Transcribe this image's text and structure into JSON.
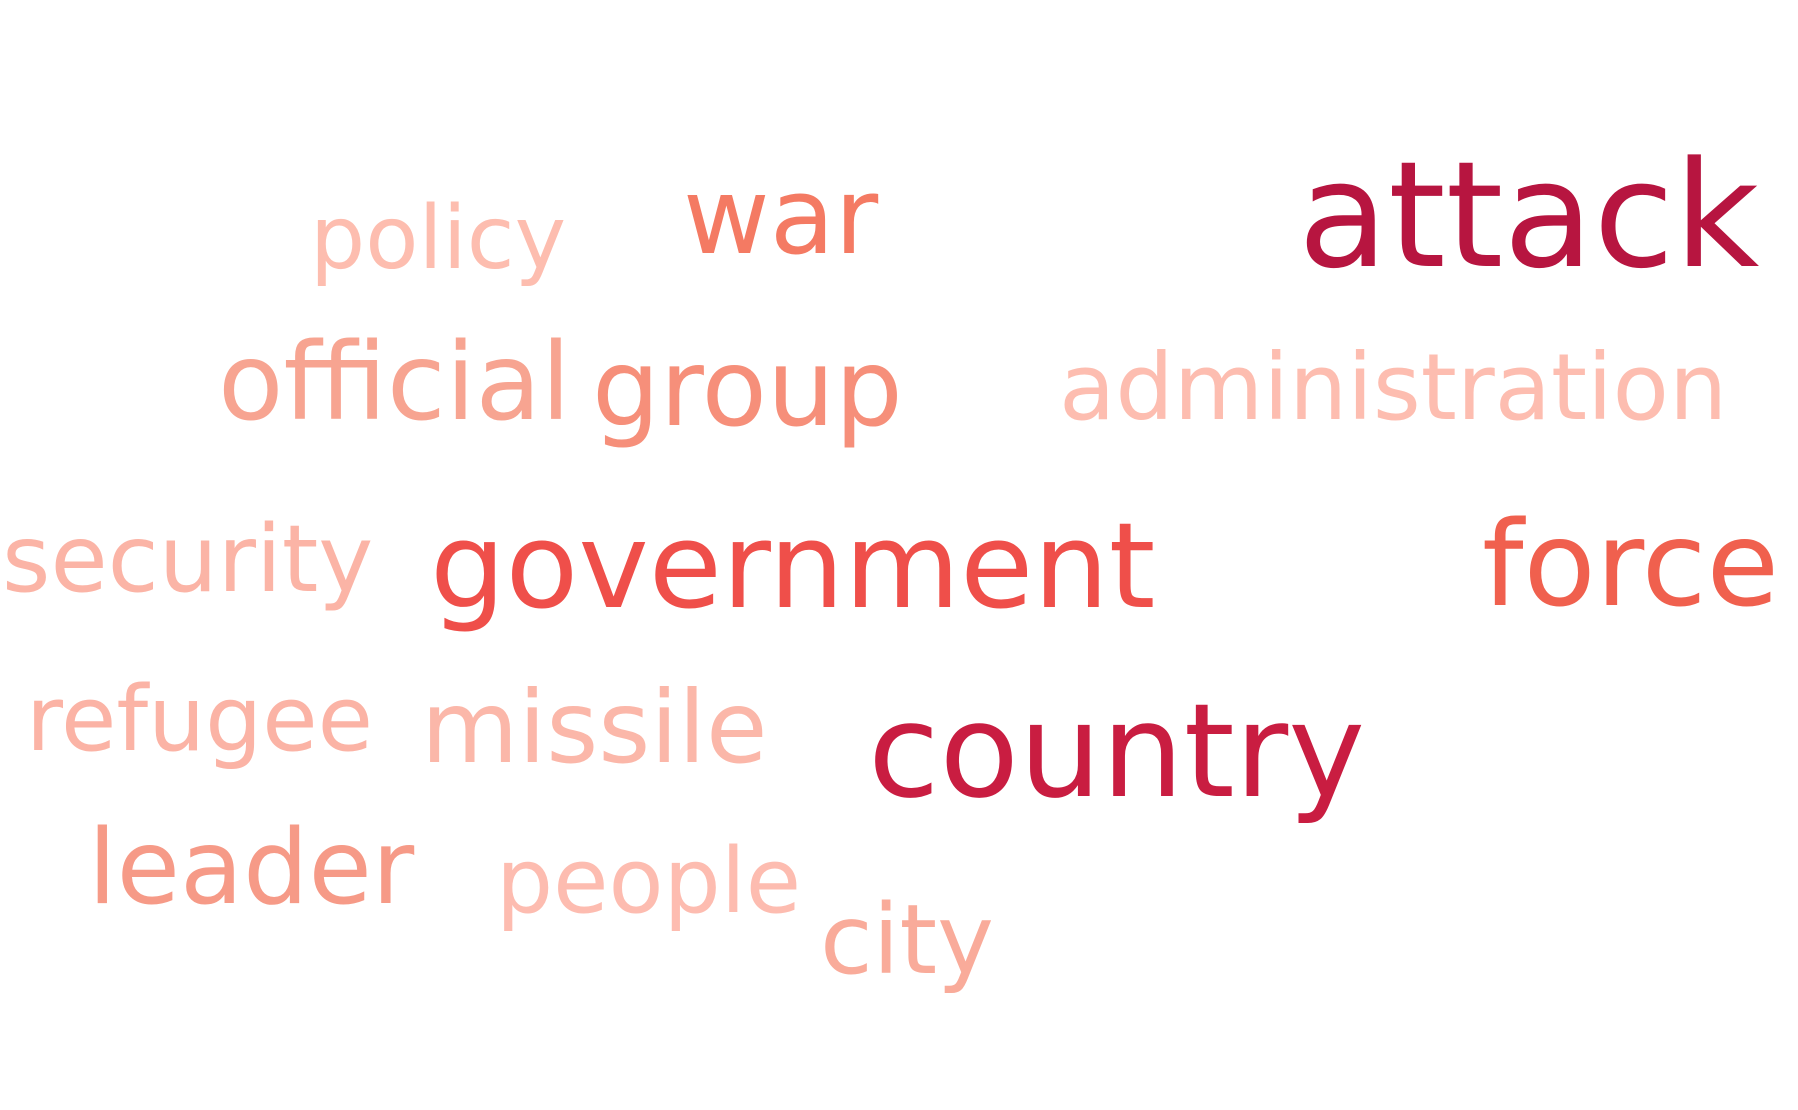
{
  "words": {
    "attack": {
      "text": "attack",
      "color": "#b71540"
    },
    "war": {
      "text": "war",
      "color": "#f47a63"
    },
    "policy": {
      "text": "policy",
      "color": "#fdbdaf"
    },
    "official": {
      "text": "official",
      "color": "#f7a491"
    },
    "group": {
      "text": "group",
      "color": "#f68f7a"
    },
    "administration": {
      "text": "administration",
      "color": "#fdbdb0"
    },
    "security": {
      "text": "security",
      "color": "#fbb4a6"
    },
    "government": {
      "text": "government",
      "color": "#ef4f4a"
    },
    "force": {
      "text": "force",
      "color": "#f0604e"
    },
    "refugee": {
      "text": "refugee",
      "color": "#fbb3a5"
    },
    "missile": {
      "text": "missile",
      "color": "#fbb7a9"
    },
    "country": {
      "text": "country",
      "color": "#c91d41"
    },
    "leader": {
      "text": "leader",
      "color": "#f69a87"
    },
    "people": {
      "text": "people",
      "color": "#fdbcb0"
    },
    "city": {
      "text": "city",
      "color": "#f9ab9a"
    }
  }
}
